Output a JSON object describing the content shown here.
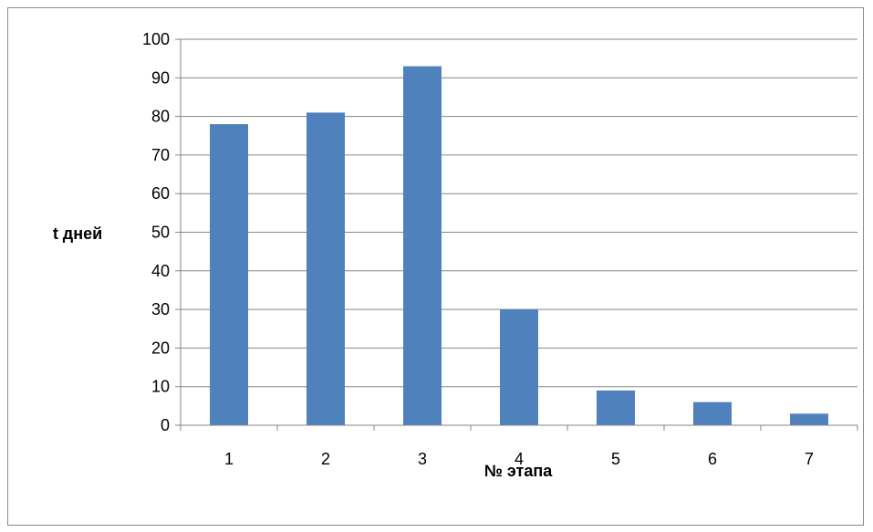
{
  "chart_data": {
    "type": "bar",
    "categories": [
      "1",
      "2",
      "3",
      "4",
      "5",
      "6",
      "7"
    ],
    "values": [
      78,
      81,
      93,
      30,
      9,
      6,
      3
    ],
    "xlabel": "№ этапа",
    "ylabel": "t дней",
    "ylim": [
      0,
      100
    ],
    "yticks": [
      "0",
      "10",
      "20",
      "30",
      "40",
      "50",
      "60",
      "70",
      "80",
      "90",
      "100"
    ],
    "grid": true,
    "legend": "none",
    "colors": {
      "bar": "#4F81BD",
      "grid": "#868686",
      "axis": "#868686"
    }
  }
}
